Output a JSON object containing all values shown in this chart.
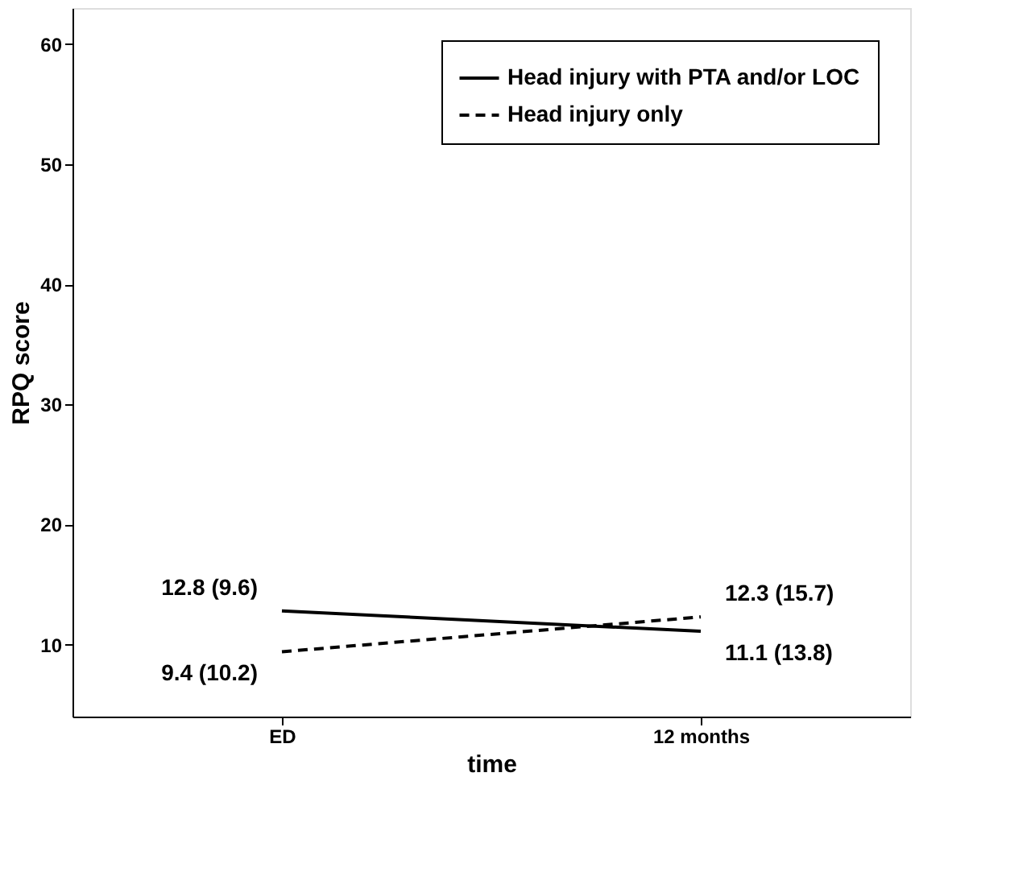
{
  "chart_data": {
    "type": "line",
    "xlabel": "time",
    "ylabel": "RPQ score",
    "categories": [
      "ED",
      "12 months"
    ],
    "series": [
      {
        "name": "Head injury with PTA and/or LOC",
        "color": "#000000",
        "line_style": "solid",
        "values": [
          12.8,
          11.1
        ],
        "value_labels": [
          "12.8 (9.6)",
          "11.1 (13.8)"
        ]
      },
      {
        "name": "Head injury only",
        "color": "#000000",
        "line_style": "dashed",
        "values": [
          9.4,
          12.3
        ],
        "value_labels": [
          "9.4 (10.2)",
          "12.3 (15.7)"
        ]
      }
    ],
    "ylim": [
      4,
      63
    ],
    "yticks": [
      10,
      20,
      30,
      40,
      50,
      60
    ],
    "grid": false,
    "legend": "top right",
    "marker": "none"
  }
}
